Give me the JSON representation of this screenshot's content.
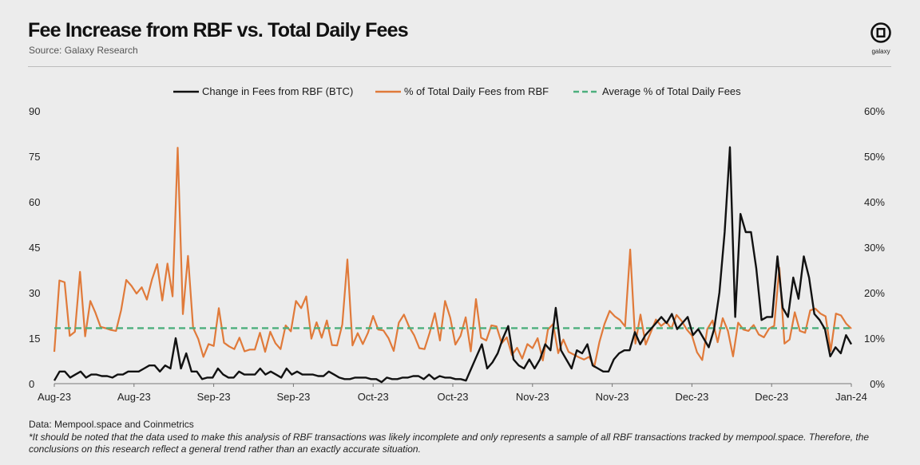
{
  "header": {
    "title": "Fee Increase from RBF vs. Total Daily Fees",
    "source": "Source: Galaxy Research",
    "logo_text": "galaxy"
  },
  "footer": {
    "data_note": "Data: Mempool.space and Coinmetrics",
    "disclaimer": "*It should be noted that the data used to make this analysis of RBF transactions was likely incomplete and only represents a sample of all RBF transactions tracked by mempool.space. Therefore, the conclusions on this research reflect a general trend rather than an exactly accurate situation."
  },
  "colors": {
    "btc": "#111111",
    "pct": "#e07a3a",
    "avg": "#4caf7d"
  },
  "chart_data": {
    "type": "line",
    "legend": [
      "Change in Fees from RBF (BTC)",
      "% of Total Daily Fees from RBF",
      "Average % of Total Daily Fees"
    ],
    "legend_position": "top-center",
    "x_tick_labels": [
      "Aug-23",
      "Aug-23",
      "Sep-23",
      "Sep-23",
      "Oct-23",
      "Oct-23",
      "Nov-23",
      "Nov-23",
      "Dec-23",
      "Dec-23",
      "Jan-24"
    ],
    "y_left": {
      "ticks": [
        "0",
        "15",
        "30",
        "45",
        "60",
        "75",
        "90"
      ],
      "range": [
        0,
        90
      ]
    },
    "y_right": {
      "ticks": [
        "0%",
        "10%",
        "20%",
        "30%",
        "40%",
        "50%",
        "60%"
      ],
      "range": [
        0,
        60
      ]
    },
    "grid": false,
    "series": [
      {
        "name": "Change in Fees from RBF (BTC)",
        "axis": "left",
        "values": [
          1,
          4,
          4,
          2,
          3,
          4,
          2,
          3,
          3,
          2.5,
          2.5,
          2,
          3,
          3,
          4,
          4,
          4,
          5,
          6,
          6,
          4,
          6,
          5,
          15,
          5,
          10,
          4,
          4,
          1.5,
          2,
          2,
          5,
          3,
          2,
          2,
          4,
          3,
          3,
          3,
          5,
          3,
          4,
          3,
          2,
          5,
          3,
          4,
          3,
          3,
          3,
          2.5,
          2.5,
          4,
          3,
          2,
          1.5,
          1.5,
          2,
          2,
          2,
          1.5,
          1.5,
          0.5,
          2,
          1.5,
          1.5,
          2,
          2,
          2.5,
          2.5,
          1.5,
          3,
          1.5,
          2.5,
          2,
          2,
          1.5,
          1.5,
          1,
          5,
          9,
          13,
          5,
          7,
          10,
          15,
          19,
          8,
          6,
          5,
          8,
          5,
          8,
          13,
          11,
          25,
          11,
          8,
          5,
          11,
          10,
          13,
          6,
          5,
          4,
          4,
          8,
          10,
          11,
          11,
          17,
          13,
          16,
          18,
          20,
          22,
          20,
          23,
          18,
          20,
          22,
          16,
          18,
          15,
          12,
          18,
          30,
          50,
          78,
          22,
          56,
          50,
          50,
          38,
          21,
          22,
          22,
          42,
          25,
          22,
          35,
          28,
          42,
          35,
          23,
          21,
          18,
          9,
          12,
          10,
          16,
          13
        ]
      },
      {
        "name": "% of Total Daily Fees from RBF",
        "axis": "right",
        "values": [
          7,
          22.7,
          22.3,
          10.5,
          11.4,
          24.6,
          10.4,
          18.2,
          15.6,
          12.5,
          12.2,
          11.8,
          11.6,
          16.2,
          22.8,
          21.5,
          19.8,
          21.2,
          18.5,
          22.9,
          26.3,
          18.3,
          26.4,
          19.2,
          51.9,
          15.3,
          28.1,
          12.3,
          9.8,
          5.9,
          8.7,
          8.3,
          16.6,
          9,
          8.2,
          7.6,
          10.1,
          7.1,
          7.5,
          7.5,
          11.2,
          7,
          11.4,
          8.9,
          7.6,
          12.8,
          11.5,
          18.2,
          16.6,
          19.2,
          9.9,
          13.5,
          10.1,
          13.9,
          8.5,
          8.4,
          13,
          27.3,
          8.4,
          11.1,
          8.7,
          11.2,
          14.9,
          11.9,
          11.7,
          10,
          7.2,
          13.4,
          15.2,
          12.5,
          10.6,
          7.8,
          7.6,
          11.2,
          15.5,
          9.5,
          18.2,
          14.5,
          8.6,
          10.5,
          14.6,
          7.1,
          18.6,
          10.1,
          9.5,
          12.8,
          12.6,
          8.9,
          10.2,
          6.3,
          7.9,
          5.5,
          8.7,
          7.8,
          10,
          5.1,
          11.9,
          13.1,
          6.7,
          9.7,
          7,
          6.4,
          5.8,
          5.3,
          5.9,
          3.7,
          9.1,
          13.1,
          16,
          14.8,
          14,
          12.6,
          29.5,
          8.8,
          15.2,
          8.6,
          11.3,
          14.1,
          12.7,
          13.6,
          12.1,
          15.1,
          13.8,
          11.9,
          10.6,
          6.9,
          5.2,
          12,
          13.9,
          9.1,
          14.4,
          11.6,
          6,
          13.4,
          11.9,
          11.6,
          12.9,
          10.8,
          10.2,
          12.1,
          12.7,
          25.5,
          8.8,
          9.7,
          15.7,
          11.6,
          11.2,
          16.1,
          16.5,
          15.4,
          14.8,
          7.2,
          15.4,
          15,
          13.2,
          12.1
        ]
      },
      {
        "name": "Average % of Total Daily Fees",
        "axis": "right",
        "values": [
          12.2
        ]
      }
    ]
  }
}
